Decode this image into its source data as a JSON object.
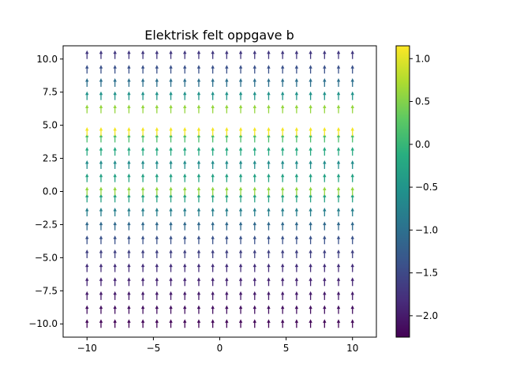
{
  "chart_data": {
    "type": "quiver",
    "title": "Elektrisk felt oppgave b",
    "xlabel": "",
    "ylabel": "",
    "xlim": [
      -11.8,
      11.8
    ],
    "ylim": [
      -11.0,
      11.0
    ],
    "xticks": [
      -10,
      -5,
      0,
      5,
      10
    ],
    "xtick_labels": [
      "−10",
      "−5",
      "0",
      "5",
      "10"
    ],
    "yticks": [
      -10,
      -7.5,
      -5,
      -2.5,
      0,
      2.5,
      5,
      7.5,
      10
    ],
    "ytick_labels": [
      "−10.0",
      "−7.5",
      "−5.0",
      "−2.5",
      "0.0",
      "2.5",
      "5.0",
      "7.5",
      "10.0"
    ],
    "grid": false,
    "arrow_direction": "up",
    "x_grid": [
      -10,
      -8.947,
      -7.895,
      -6.842,
      -5.789,
      -4.737,
      -3.684,
      -2.632,
      -1.579,
      -0.526,
      0.526,
      1.579,
      2.632,
      3.684,
      4.737,
      5.789,
      6.842,
      7.895,
      8.947,
      10
    ],
    "rows": [
      {
        "y": -10.0,
        "value": -2.2
      },
      {
        "y": -8.947,
        "value": -2.1
      },
      {
        "y": -7.895,
        "value": -2.0
      },
      {
        "y": -6.842,
        "value": -1.9
      },
      {
        "y": -5.789,
        "value": -1.8
      },
      {
        "y": -4.737,
        "value": -1.6
      },
      {
        "y": -3.684,
        "value": -1.4
      },
      {
        "y": -2.632,
        "value": -1.1
      },
      {
        "y": -1.579,
        "value": -0.8
      },
      {
        "y": -0.526,
        "value": -0.3
      },
      {
        "y": 0.0,
        "value": 0.6
      },
      {
        "y": 1.0,
        "value": -0.3
      },
      {
        "y": 2.0,
        "value": -0.6
      },
      {
        "y": 3.0,
        "value": -0.2
      },
      {
        "y": 4.0,
        "value": 0.15
      },
      {
        "y": 4.5,
        "value": 1.1
      },
      {
        "y": 6.2,
        "value": 0.6
      },
      {
        "y": 7.2,
        "value": -0.5
      },
      {
        "y": 8.2,
        "value": -1.0
      },
      {
        "y": 9.2,
        "value": -1.4
      },
      {
        "y": 10.3,
        "value": -1.7
      }
    ],
    "colorbar": {
      "colormap": "viridis",
      "min": -2.25,
      "max": 1.15,
      "ticks": [
        -2.0,
        -1.5,
        -1.0,
        -0.5,
        0.0,
        0.5,
        1.0
      ],
      "tick_labels": [
        "−2.0",
        "−1.5",
        "−1.0",
        "−0.5",
        "0.0",
        "0.5",
        "1.0"
      ]
    }
  }
}
